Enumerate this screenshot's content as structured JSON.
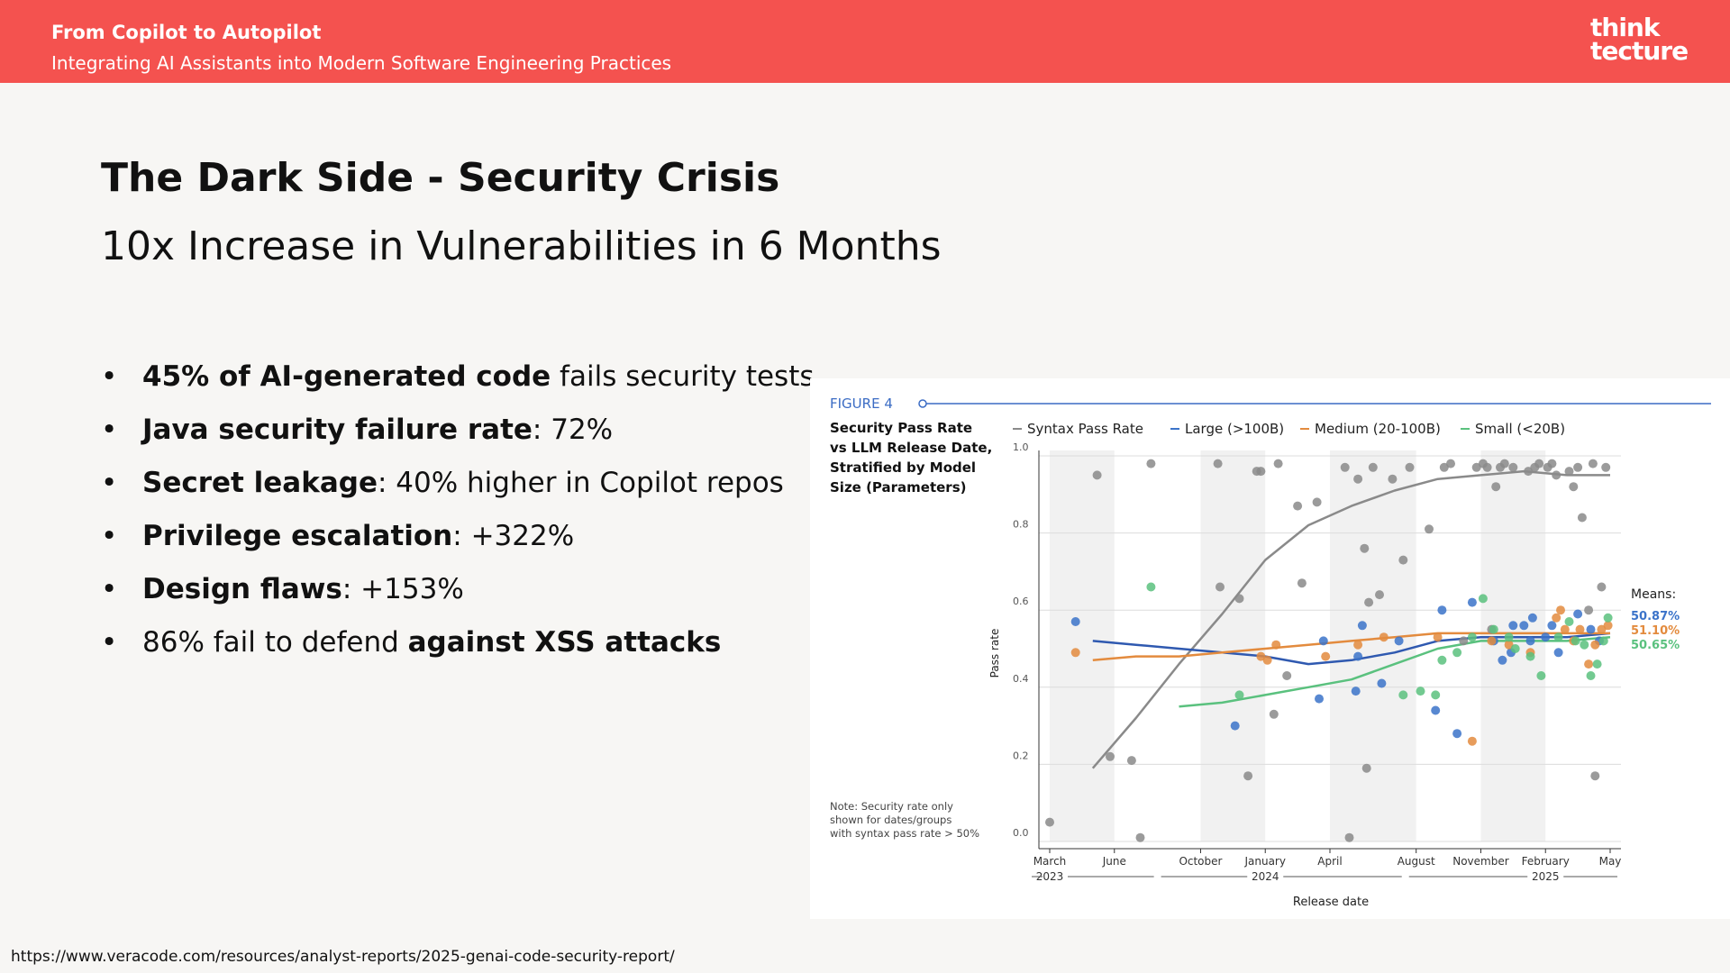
{
  "header": {
    "title": "From Copilot to Autopilot",
    "subtitle": "Integrating AI Assistants into Modern Software Engineering Practices",
    "logo_line1": "think",
    "logo_line2": "tecture"
  },
  "slide": {
    "title": "The Dark Side - Security Crisis",
    "subtitle": "10x Increase in Vulnerabilities in 6 Months"
  },
  "bullets": [
    {
      "bold": "45% of AI-generated code",
      "rest": " fails security tests"
    },
    {
      "bold": "Java security failure rate",
      "rest": ": 72%"
    },
    {
      "bold": "Secret leakage",
      "rest": ": 40% higher in Copilot repos"
    },
    {
      "bold": "Privilege escalation",
      "rest": ": +322%"
    },
    {
      "bold": "Design flaws",
      "rest": ": +153%"
    },
    {
      "pre": "86% fail to defend ",
      "bold": "against XSS attacks"
    }
  ],
  "source_url": "https://www.veracode.com/resources/analyst-reports/2025-genai-code-security-report/",
  "chart_data": {
    "type": "scatter",
    "figure_label": "FIGURE 4",
    "title_lines": [
      "Security Pass Rate",
      "vs LLM Release Date,",
      "Stratified by Model",
      "Size (Parameters)"
    ],
    "note_lines": [
      "Note: Security rate only",
      "shown for dates/groups",
      "with syntax pass rate > 50%"
    ],
    "xlabel": "Release date",
    "ylabel": "Pass rate",
    "ylim": [
      0,
      1
    ],
    "yticks": [
      "0.0",
      "0.2",
      "0.4",
      "0.6",
      "0.8",
      "1.0"
    ],
    "xticks": [
      {
        "m": 0,
        "label": "March"
      },
      {
        "m": 3,
        "label": "June"
      },
      {
        "m": 7,
        "label": "October"
      },
      {
        "m": 10,
        "label": "January"
      },
      {
        "m": 13,
        "label": "April"
      },
      {
        "m": 17,
        "label": "August"
      },
      {
        "m": 20,
        "label": "November"
      },
      {
        "m": 23,
        "label": "February"
      },
      {
        "m": 26,
        "label": "May"
      }
    ],
    "years": [
      {
        "m": 0,
        "label": "2023"
      },
      {
        "m": 10,
        "label": "2024"
      },
      {
        "m": 23,
        "label": "2025"
      }
    ],
    "xlim": [
      0,
      26
    ],
    "grid": true,
    "legend_position": "top",
    "means_label": "Means:",
    "series": [
      {
        "name": "Syntax Pass Rate",
        "color": "#8a8a8a",
        "points": [
          [
            0,
            0.05
          ],
          [
            2.2,
            0.95
          ],
          [
            2.8,
            0.22
          ],
          [
            3.8,
            0.21
          ],
          [
            4.2,
            0.01
          ],
          [
            4.7,
            0.98
          ],
          [
            7.8,
            0.98
          ],
          [
            7.9,
            0.66
          ],
          [
            8.8,
            0.63
          ],
          [
            9.2,
            0.17
          ],
          [
            9.6,
            0.96
          ],
          [
            9.8,
            0.96
          ],
          [
            10.4,
            0.33
          ],
          [
            10.6,
            0.98
          ],
          [
            11,
            0.43
          ],
          [
            11.5,
            0.87
          ],
          [
            11.7,
            0.67
          ],
          [
            12.4,
            0.88
          ],
          [
            13.7,
            0.97
          ],
          [
            13.9,
            0.01
          ],
          [
            14.3,
            0.94
          ],
          [
            14.6,
            0.76
          ],
          [
            14.7,
            0.19
          ],
          [
            14.8,
            0.62
          ],
          [
            15,
            0.97
          ],
          [
            15.3,
            0.64
          ],
          [
            15.9,
            0.94
          ],
          [
            16.4,
            0.73
          ],
          [
            16.7,
            0.97
          ],
          [
            17.6,
            0.81
          ],
          [
            18.3,
            0.97
          ],
          [
            18.6,
            0.98
          ],
          [
            19.2,
            0.52
          ],
          [
            19.8,
            0.97
          ],
          [
            20.1,
            0.98
          ],
          [
            20.3,
            0.97
          ],
          [
            20.5,
            0.55
          ],
          [
            20.7,
            0.92
          ],
          [
            20.9,
            0.97
          ],
          [
            21.1,
            0.98
          ],
          [
            21.5,
            0.97
          ],
          [
            22.2,
            0.96
          ],
          [
            22.5,
            0.97
          ],
          [
            22.7,
            0.98
          ],
          [
            23.1,
            0.97
          ],
          [
            23.3,
            0.98
          ],
          [
            23.5,
            0.95
          ],
          [
            24.1,
            0.96
          ],
          [
            24.3,
            0.92
          ],
          [
            24.5,
            0.97
          ],
          [
            24.7,
            0.84
          ],
          [
            25,
            0.6
          ],
          [
            25.2,
            0.98
          ],
          [
            25.3,
            0.17
          ],
          [
            25.6,
            0.66
          ],
          [
            25.8,
            0.97
          ]
        ]
      },
      {
        "name": "Large (>100B)",
        "color": "#3b73c9",
        "points": [
          [
            1.2,
            0.57
          ],
          [
            8.6,
            0.3
          ],
          [
            12.5,
            0.37
          ],
          [
            12.7,
            0.52
          ],
          [
            14.2,
            0.39
          ],
          [
            14.3,
            0.48
          ],
          [
            14.5,
            0.56
          ],
          [
            15.4,
            0.41
          ],
          [
            16.2,
            0.52
          ],
          [
            17.9,
            0.34
          ],
          [
            18.2,
            0.6
          ],
          [
            18.9,
            0.28
          ],
          [
            19.6,
            0.62
          ],
          [
            20.6,
            0.52
          ],
          [
            21,
            0.47
          ],
          [
            21.4,
            0.49
          ],
          [
            21.5,
            0.56
          ],
          [
            22,
            0.56
          ],
          [
            22.3,
            0.52
          ],
          [
            22.4,
            0.58
          ],
          [
            23,
            0.53
          ],
          [
            23.3,
            0.56
          ],
          [
            23.6,
            0.49
          ],
          [
            24.5,
            0.59
          ],
          [
            25.1,
            0.55
          ],
          [
            25.5,
            0.52
          ]
        ]
      },
      {
        "name": "Medium (20-100B)",
        "color": "#e38b3e",
        "points": [
          [
            1.2,
            0.49
          ],
          [
            9.8,
            0.48
          ],
          [
            10.1,
            0.47
          ],
          [
            10.5,
            0.51
          ],
          [
            12.8,
            0.48
          ],
          [
            14.3,
            0.51
          ],
          [
            15.5,
            0.53
          ],
          [
            18,
            0.53
          ],
          [
            19.6,
            0.26
          ],
          [
            20.5,
            0.52
          ],
          [
            21.3,
            0.51
          ],
          [
            22.3,
            0.49
          ],
          [
            23.5,
            0.58
          ],
          [
            23.7,
            0.6
          ],
          [
            23.9,
            0.55
          ],
          [
            24.3,
            0.52
          ],
          [
            24.6,
            0.55
          ],
          [
            25,
            0.46
          ],
          [
            25.3,
            0.51
          ],
          [
            25.6,
            0.55
          ],
          [
            25.9,
            0.56
          ]
        ]
      },
      {
        "name": "Small (<20B)",
        "color": "#5ac17e",
        "points": [
          [
            4.7,
            0.66
          ],
          [
            8.8,
            0.38
          ],
          [
            16.4,
            0.38
          ],
          [
            17.2,
            0.39
          ],
          [
            17.9,
            0.38
          ],
          [
            18.2,
            0.47
          ],
          [
            18.9,
            0.49
          ],
          [
            19.6,
            0.53
          ],
          [
            20.1,
            0.63
          ],
          [
            20.6,
            0.55
          ],
          [
            21.3,
            0.53
          ],
          [
            21.6,
            0.5
          ],
          [
            22.3,
            0.48
          ],
          [
            22.8,
            0.43
          ],
          [
            23.6,
            0.53
          ],
          [
            24.1,
            0.57
          ],
          [
            24.4,
            0.52
          ],
          [
            24.8,
            0.51
          ],
          [
            25.1,
            0.43
          ],
          [
            25.4,
            0.46
          ],
          [
            25.7,
            0.52
          ],
          [
            25.9,
            0.58
          ]
        ]
      }
    ],
    "trend_lines": [
      {
        "series": "Syntax Pass Rate",
        "color": "#8a8a8a",
        "points": [
          [
            2,
            0.19
          ],
          [
            4,
            0.32
          ],
          [
            6,
            0.46
          ],
          [
            8,
            0.59
          ],
          [
            10,
            0.73
          ],
          [
            12,
            0.82
          ],
          [
            14,
            0.87
          ],
          [
            16,
            0.91
          ],
          [
            18,
            0.94
          ],
          [
            20,
            0.95
          ],
          [
            22,
            0.96
          ],
          [
            24,
            0.95
          ],
          [
            26,
            0.95
          ]
        ]
      },
      {
        "series": "Large (>100B)",
        "color": "#2f59b0",
        "points": [
          [
            2,
            0.52
          ],
          [
            4,
            0.51
          ],
          [
            6,
            0.5
          ],
          [
            8,
            0.49
          ],
          [
            10,
            0.48
          ],
          [
            12,
            0.46
          ],
          [
            14,
            0.47
          ],
          [
            16,
            0.49
          ],
          [
            18,
            0.52
          ],
          [
            20,
            0.53
          ],
          [
            22,
            0.53
          ],
          [
            24,
            0.53
          ],
          [
            26,
            0.54
          ]
        ]
      },
      {
        "series": "Medium (20-100B)",
        "color": "#e38b3e",
        "points": [
          [
            2,
            0.47
          ],
          [
            4,
            0.48
          ],
          [
            6,
            0.48
          ],
          [
            8,
            0.49
          ],
          [
            10,
            0.5
          ],
          [
            12,
            0.51
          ],
          [
            14,
            0.52
          ],
          [
            16,
            0.53
          ],
          [
            18,
            0.54
          ],
          [
            20,
            0.54
          ],
          [
            22,
            0.54
          ],
          [
            24,
            0.54
          ],
          [
            26,
            0.54
          ]
        ]
      },
      {
        "series": "Small (<20B)",
        "color": "#5ac17e",
        "points": [
          [
            6,
            0.35
          ],
          [
            8,
            0.36
          ],
          [
            10,
            0.38
          ],
          [
            12,
            0.4
          ],
          [
            14,
            0.42
          ],
          [
            16,
            0.46
          ],
          [
            18,
            0.5
          ],
          [
            20,
            0.52
          ],
          [
            22,
            0.52
          ],
          [
            24,
            0.52
          ],
          [
            26,
            0.53
          ]
        ]
      }
    ],
    "means": [
      {
        "label": "50.87%",
        "color": "#3b73c9"
      },
      {
        "label": "51.10%",
        "color": "#e38b3e"
      },
      {
        "label": "50.65%",
        "color": "#5ac17e"
      }
    ]
  }
}
